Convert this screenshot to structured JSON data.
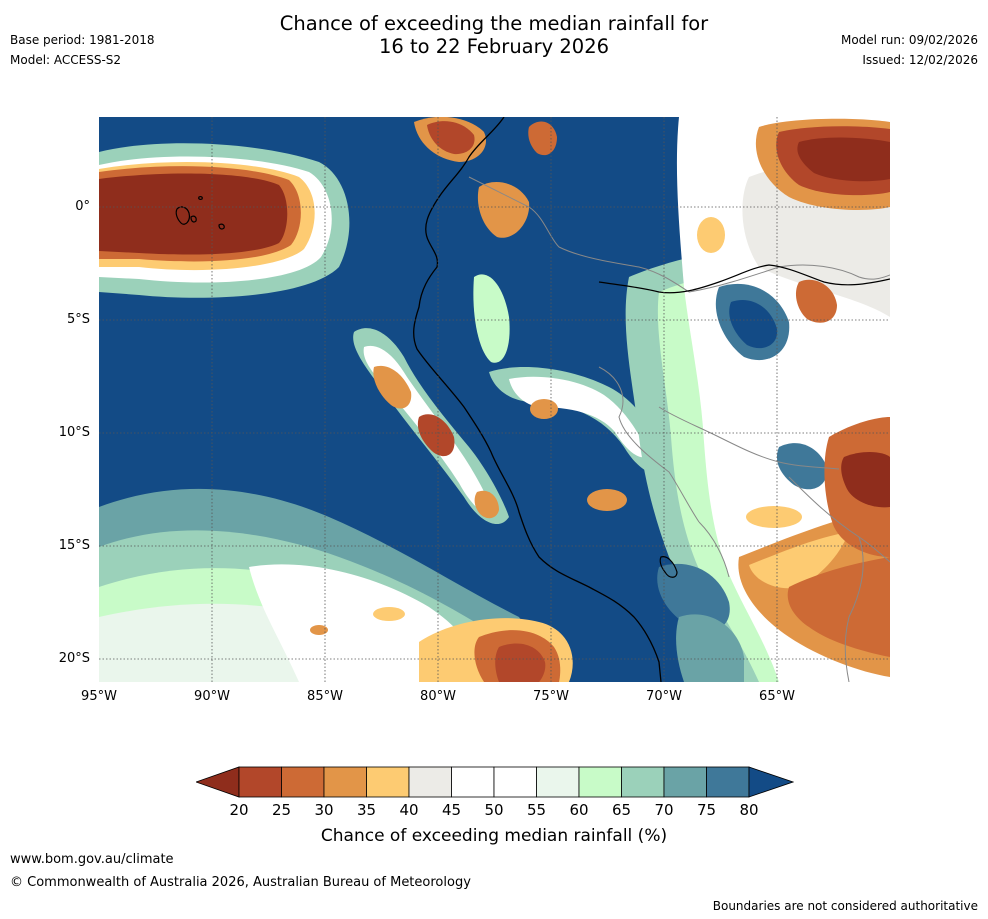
{
  "header": {
    "title_line1": "Chance of exceeding the median rainfall for",
    "title_line2": "16 to 22 February 2026",
    "base_period": "Base period: 1981-2018",
    "model": "Model: ACCESS-S2",
    "model_run": "Model run: 09/02/2026",
    "issued": "Issued: 12/02/2026"
  },
  "map": {
    "lat_labels": [
      "0°",
      "5°S",
      "10°S",
      "15°S",
      "20°S"
    ],
    "lon_labels": [
      "95°W",
      "90°W",
      "85°W",
      "80°W",
      "75°W",
      "70°W",
      "65°W"
    ],
    "colors": {
      "c20": "#8f2d1c",
      "c25": "#b2472a",
      "c30": "#cd6a35",
      "c35": "#e29548",
      "c40": "#fdcb72",
      "c45": "#ecebe7",
      "c50": "#ffffff",
      "c60": "#eaf6ec",
      "c65": "#c8fbc8",
      "c70": "#9bd1ba",
      "c75": "#6aa3a6",
      "c80": "#3f7899",
      "c80plus": "#134b86"
    }
  },
  "colorbar": {
    "ticks": [
      "20",
      "25",
      "30",
      "35",
      "40",
      "45",
      "50",
      "55",
      "60",
      "65",
      "70",
      "75",
      "80"
    ],
    "title": "Chance of exceeding median rainfall (%)"
  },
  "footer": {
    "url": "www.bom.gov.au/climate",
    "copyright": "© Commonwealth of Australia 2026, Australian Bureau of Meteorology",
    "disclaimer": "Boundaries are not considered authoritative"
  }
}
